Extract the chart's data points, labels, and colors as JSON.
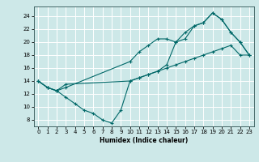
{
  "xlabel": "Humidex (Indice chaleur)",
  "bg_color": "#cde8e8",
  "grid_color": "#ffffff",
  "line_color": "#006868",
  "xlim": [
    -0.5,
    23.5
  ],
  "ylim": [
    7,
    25.5
  ],
  "xticks": [
    0,
    1,
    2,
    3,
    4,
    5,
    6,
    7,
    8,
    9,
    10,
    11,
    12,
    13,
    14,
    15,
    16,
    17,
    18,
    19,
    20,
    21,
    22,
    23
  ],
  "yticks": [
    8,
    10,
    12,
    14,
    16,
    18,
    20,
    22,
    24
  ],
  "line1_x": [
    0,
    1,
    2,
    3,
    4,
    5,
    6,
    7,
    8,
    9,
    10,
    11,
    12,
    13,
    14,
    15,
    16,
    17,
    18,
    19,
    20,
    21,
    22,
    23
  ],
  "line1_y": [
    14,
    13,
    12.5,
    11.5,
    10.5,
    9.5,
    9.0,
    8.0,
    7.5,
    9.5,
    14.0,
    14.5,
    15.0,
    15.5,
    16.0,
    16.5,
    17.0,
    17.5,
    18.0,
    18.5,
    19.0,
    19.5,
    18.0,
    18.0
  ],
  "line2_x": [
    0,
    1,
    2,
    3,
    10,
    11,
    12,
    13,
    14,
    15,
    16,
    17,
    18,
    19,
    20,
    21,
    22,
    23
  ],
  "line2_y": [
    14,
    13,
    12.5,
    13.0,
    17.0,
    18.5,
    19.5,
    20.5,
    20.5,
    20.0,
    21.5,
    22.5,
    23.0,
    24.5,
    23.5,
    21.5,
    20.0,
    18.0
  ],
  "line3_x": [
    0,
    1,
    2,
    3,
    10,
    11,
    12,
    13,
    14,
    15,
    16,
    17,
    18,
    19,
    20,
    21,
    22,
    23
  ],
  "line3_y": [
    14,
    13,
    12.5,
    13.5,
    14.0,
    14.5,
    15.0,
    15.5,
    16.5,
    20.0,
    20.5,
    22.5,
    23.0,
    24.5,
    23.5,
    21.5,
    20.0,
    18.0
  ]
}
